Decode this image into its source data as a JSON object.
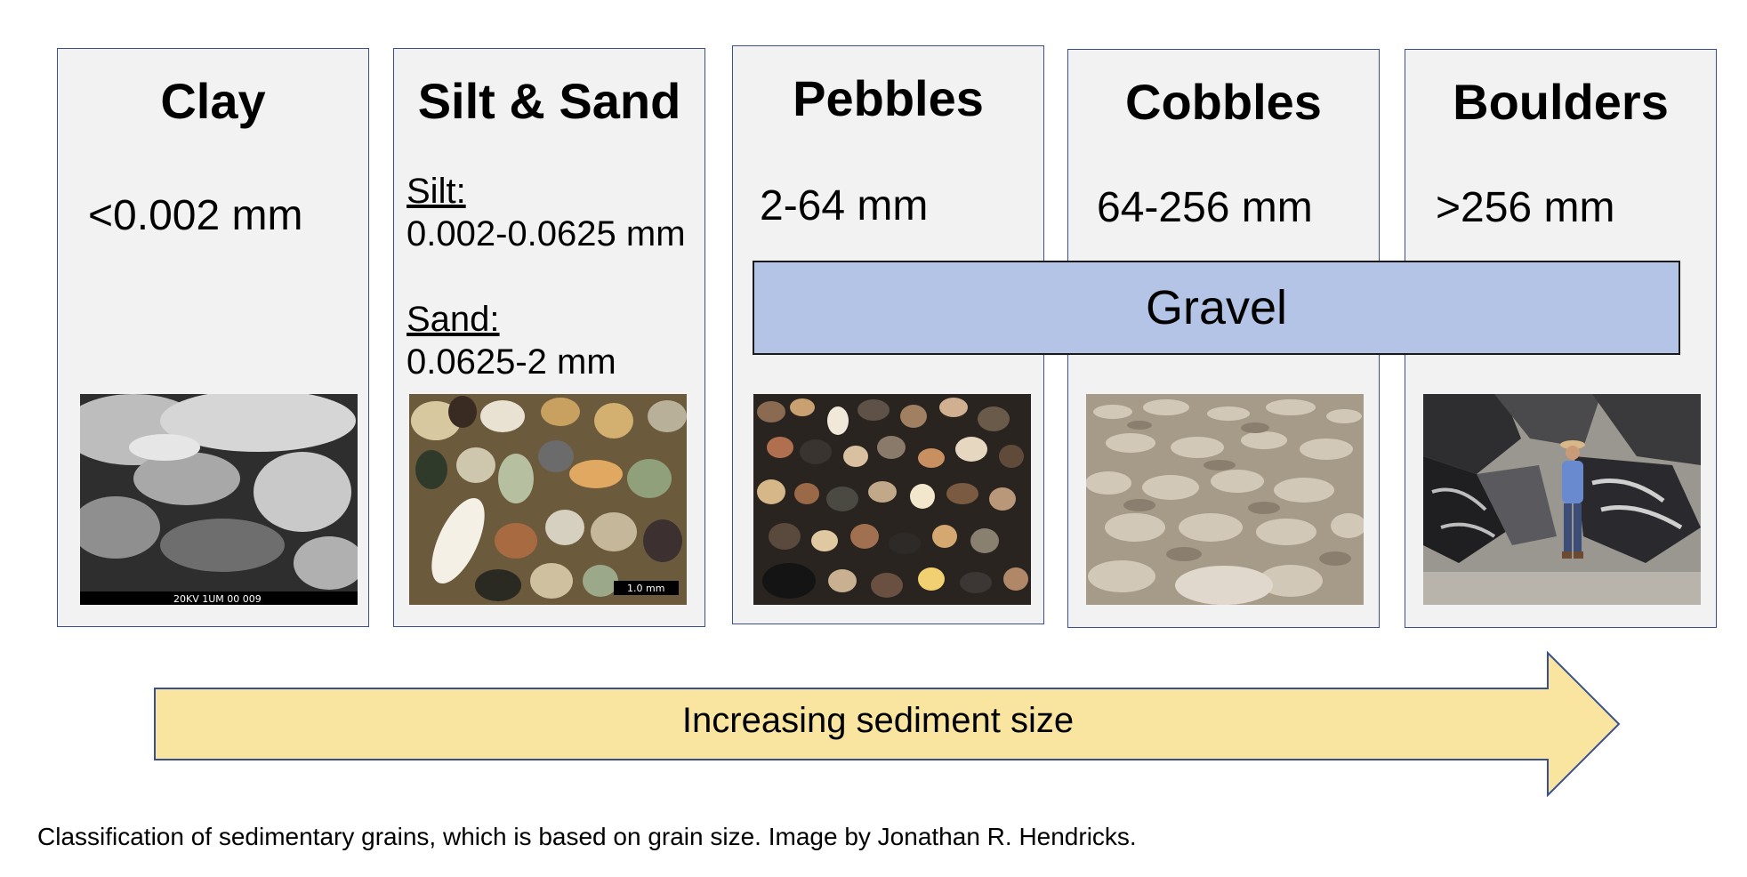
{
  "panels": [
    {
      "title": "Clay",
      "size": "<0.002 mm"
    },
    {
      "title": "Silt & Sand",
      "silt_label": "Silt:",
      "silt_range": "0.002-0.0625 mm",
      "sand_label": "Sand:",
      "sand_range": "0.0625-2 mm",
      "scale_bar": "1.0 mm"
    },
    {
      "title": "Pebbles",
      "size": "2-64 mm"
    },
    {
      "title": "Cobbles",
      "size": "64-256 mm"
    },
    {
      "title": "Boulders",
      "size": ">256 mm"
    }
  ],
  "gravel_label": "Gravel",
  "arrow_label": "Increasing sediment size",
  "caption": "Classification of sedimentary grains, which is based on grain size. Image by Jonathan R. Hendricks.",
  "colors": {
    "panel_bg": "#f2f2f2",
    "border": "#3a4f8f",
    "gravel": "#b4c4e6",
    "arrow": "#fae5a0"
  }
}
